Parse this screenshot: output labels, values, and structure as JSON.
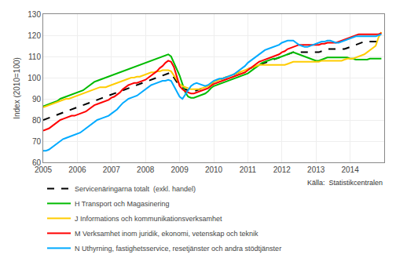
{
  "chart_data": {
    "type": "line",
    "ylabel": "Index (2010=100)",
    "annotations": [
      "Källa:  Statistikcentralen"
    ],
    "xlim": [
      2005.0,
      2015.0
    ],
    "ylim": [
      60,
      130
    ],
    "xticks": [
      2005,
      2006,
      2007,
      2008,
      2009,
      2010,
      2011,
      2012,
      2013,
      2014
    ],
    "yticks": [
      60,
      70,
      80,
      90,
      100,
      110,
      120,
      130
    ],
    "grid": true,
    "legend": "bottom",
    "x": [
      2005.0,
      2005.083,
      2005.167,
      2005.25,
      2005.333,
      2005.417,
      2005.5,
      2005.583,
      2005.667,
      2005.75,
      2005.833,
      2005.917,
      2006.0,
      2006.083,
      2006.167,
      2006.25,
      2006.333,
      2006.417,
      2006.5,
      2006.583,
      2006.667,
      2006.75,
      2006.833,
      2006.917,
      2007.0,
      2007.083,
      2007.167,
      2007.25,
      2007.333,
      2007.417,
      2007.5,
      2007.583,
      2007.667,
      2007.75,
      2007.833,
      2007.917,
      2008.0,
      2008.083,
      2008.167,
      2008.25,
      2008.333,
      2008.417,
      2008.5,
      2008.583,
      2008.667,
      2008.75,
      2008.833,
      2008.917,
      2009.0,
      2009.083,
      2009.167,
      2009.25,
      2009.333,
      2009.417,
      2009.5,
      2009.583,
      2009.667,
      2009.75,
      2009.833,
      2009.917,
      2010.0,
      2010.083,
      2010.167,
      2010.25,
      2010.333,
      2010.417,
      2010.5,
      2010.583,
      2010.667,
      2010.75,
      2010.833,
      2010.917,
      2011.0,
      2011.083,
      2011.167,
      2011.25,
      2011.333,
      2011.417,
      2011.5,
      2011.583,
      2011.667,
      2011.75,
      2011.833,
      2011.917,
      2012.0,
      2012.083,
      2012.167,
      2012.25,
      2012.333,
      2012.417,
      2012.5,
      2012.583,
      2012.667,
      2012.75,
      2012.833,
      2012.917,
      2013.0,
      2013.083,
      2013.167,
      2013.25,
      2013.333,
      2013.417,
      2013.5,
      2013.583,
      2013.667,
      2013.75,
      2013.833,
      2013.917,
      2014.0,
      2014.083,
      2014.167,
      2014.25,
      2014.333,
      2014.417,
      2014.5,
      2014.583,
      2014.667,
      2014.75,
      2014.833,
      2014.917
    ],
    "series": [
      {
        "name": "Servicenäringarna totalt  (exkl. handel)",
        "color": "#000000",
        "line_style": "dashed",
        "values": [
          80.0,
          80.5,
          81.0,
          81.5,
          82.0,
          82.5,
          83.0,
          83.5,
          84.0,
          84.5,
          85.0,
          85.5,
          86.0,
          86.5,
          87.0,
          87.5,
          88.0,
          88.5,
          89.0,
          89.5,
          90.0,
          90.5,
          91.0,
          91.5,
          92.0,
          92.5,
          93.0,
          93.5,
          94.0,
          94.5,
          95.0,
          95.5,
          96.0,
          96.5,
          97.0,
          97.5,
          98.0,
          98.5,
          99.0,
          99.5,
          100.0,
          100.5,
          101.0,
          101.5,
          102.0,
          102.5,
          100.0,
          98.0,
          96.0,
          95.0,
          94.5,
          94.0,
          93.5,
          93.5,
          94.0,
          94.5,
          95.0,
          95.5,
          96.0,
          97.0,
          98.0,
          98.5,
          99.0,
          99.5,
          100.0,
          100.5,
          101.0,
          101.5,
          102.0,
          102.5,
          103.0,
          103.5,
          104.0,
          104.5,
          105.0,
          105.5,
          106.0,
          106.5,
          107.0,
          107.5,
          108.0,
          108.5,
          109.0,
          109.5,
          110.0,
          110.5,
          111.0,
          111.5,
          112.0,
          112.0,
          112.0,
          112.0,
          112.0,
          112.0,
          112.0,
          112.0,
          112.0,
          112.0,
          112.5,
          113.0,
          113.5,
          113.5,
          113.5,
          113.5,
          113.5,
          113.5,
          113.5,
          114.0,
          114.5,
          115.0,
          115.5,
          116.0,
          116.5,
          117.0,
          117.0,
          117.0,
          117.0,
          117.0,
          117.0,
          117.5
        ]
      },
      {
        "name": "H Transport och Magasinering",
        "color": "#00bb00",
        "line_style": "solid",
        "values": [
          86.5,
          87.0,
          87.5,
          88.0,
          88.5,
          89.0,
          90.0,
          90.5,
          91.0,
          91.5,
          92.0,
          92.5,
          93.0,
          93.5,
          94.0,
          95.0,
          96.0,
          97.0,
          98.0,
          98.5,
          99.0,
          99.5,
          100.0,
          100.5,
          101.0,
          101.5,
          102.0,
          102.5,
          103.0,
          103.5,
          104.0,
          104.5,
          105.0,
          105.5,
          106.0,
          106.5,
          107.0,
          107.5,
          108.0,
          108.5,
          109.0,
          109.5,
          110.0,
          110.5,
          111.0,
          110.0,
          107.0,
          104.0,
          101.0,
          97.0,
          93.0,
          91.0,
          90.5,
          90.5,
          91.0,
          91.5,
          92.0,
          92.5,
          93.5,
          95.0,
          96.0,
          96.5,
          97.0,
          97.5,
          98.0,
          98.5,
          99.0,
          99.5,
          100.0,
          100.5,
          101.0,
          101.5,
          102.0,
          103.0,
          104.0,
          105.0,
          106.0,
          107.0,
          107.5,
          108.0,
          108.5,
          109.0,
          109.0,
          109.5,
          110.0,
          110.5,
          111.0,
          111.5,
          112.0,
          111.5,
          111.0,
          110.5,
          110.0,
          109.5,
          109.0,
          108.5,
          108.0,
          108.0,
          108.5,
          109.0,
          109.5,
          109.5,
          109.5,
          109.5,
          109.5,
          109.5,
          109.5,
          109.5,
          109.0,
          109.0,
          108.5,
          108.5,
          108.5,
          108.5,
          108.5,
          109.0,
          109.0,
          109.0,
          109.0,
          109.0
        ]
      },
      {
        "name": "J Informations och kommunikationsverksamhet",
        "color": "#ffcc00",
        "line_style": "solid",
        "values": [
          86.0,
          86.5,
          87.0,
          87.5,
          88.0,
          88.5,
          89.0,
          89.5,
          90.0,
          90.0,
          90.5,
          91.0,
          91.5,
          92.0,
          92.5,
          93.0,
          93.5,
          94.0,
          94.5,
          95.0,
          95.5,
          95.5,
          95.5,
          96.0,
          96.5,
          97.0,
          97.5,
          98.0,
          98.5,
          99.0,
          99.5,
          100.0,
          100.0,
          100.5,
          100.5,
          101.0,
          101.5,
          102.0,
          102.5,
          102.5,
          103.0,
          103.0,
          103.5,
          103.5,
          103.5,
          103.0,
          101.0,
          99.0,
          97.0,
          96.0,
          95.5,
          95.0,
          94.5,
          94.5,
          94.5,
          94.5,
          95.0,
          95.5,
          96.0,
          97.0,
          98.0,
          98.5,
          99.0,
          99.5,
          100.0,
          100.5,
          101.0,
          101.5,
          102.0,
          102.5,
          103.0,
          103.5,
          104.0,
          104.5,
          105.0,
          105.5,
          106.0,
          106.0,
          106.0,
          106.0,
          106.0,
          106.0,
          106.0,
          106.0,
          106.0,
          106.0,
          106.5,
          107.0,
          107.5,
          107.5,
          107.5,
          107.5,
          107.5,
          107.5,
          107.5,
          107.5,
          107.5,
          107.5,
          108.0,
          108.0,
          108.0,
          108.0,
          108.0,
          108.0,
          108.0,
          108.0,
          108.5,
          109.0,
          109.0,
          109.0,
          109.5,
          110.0,
          110.5,
          111.0,
          112.0,
          113.0,
          114.0,
          115.0,
          119.0,
          121.5
        ]
      },
      {
        "name": "M Verksamhet inom juridik, ekonomi, vetenskap och teknik",
        "color": "#ff0000",
        "line_style": "solid",
        "values": [
          75.0,
          75.5,
          76.0,
          77.0,
          78.0,
          79.0,
          80.0,
          80.5,
          81.0,
          81.5,
          82.0,
          82.0,
          82.5,
          83.0,
          83.5,
          84.0,
          85.0,
          86.0,
          87.0,
          87.5,
          88.0,
          88.5,
          89.0,
          89.5,
          90.5,
          91.0,
          92.0,
          93.0,
          94.5,
          95.5,
          96.5,
          97.0,
          97.5,
          97.5,
          98.0,
          98.5,
          99.0,
          100.0,
          101.0,
          102.0,
          103.0,
          104.5,
          105.5,
          107.0,
          108.0,
          107.5,
          105.0,
          100.5,
          96.0,
          94.5,
          93.5,
          93.0,
          92.5,
          92.5,
          93.0,
          93.5,
          94.0,
          94.5,
          95.0,
          96.0,
          97.0,
          97.5,
          98.0,
          98.5,
          99.0,
          99.5,
          100.0,
          100.5,
          101.0,
          101.5,
          102.0,
          102.5,
          103.5,
          104.5,
          105.5,
          106.5,
          107.5,
          108.0,
          108.5,
          109.0,
          109.5,
          110.0,
          110.5,
          111.0,
          112.0,
          112.5,
          113.5,
          114.0,
          114.5,
          115.0,
          115.5,
          115.5,
          115.5,
          115.5,
          115.5,
          115.5,
          115.5,
          115.5,
          116.0,
          116.0,
          116.5,
          116.5,
          116.5,
          116.5,
          117.0,
          117.5,
          118.0,
          118.5,
          119.0,
          119.5,
          120.0,
          120.5,
          120.5,
          120.5,
          120.5,
          120.5,
          120.5,
          120.5,
          120.5,
          121.0
        ]
      },
      {
        "name": "N Uthyrning, fastighetsservice, resetjänster och andra stödtjänster",
        "color": "#00aaff",
        "line_style": "solid",
        "values": [
          65.5,
          65.5,
          66.0,
          67.0,
          68.0,
          69.0,
          70.0,
          71.0,
          71.5,
          72.0,
          72.5,
          73.0,
          73.5,
          74.0,
          75.0,
          76.0,
          77.0,
          78.0,
          79.0,
          80.0,
          80.5,
          81.0,
          81.5,
          82.0,
          83.0,
          84.0,
          85.0,
          86.5,
          88.0,
          89.0,
          90.0,
          90.5,
          91.0,
          91.5,
          92.5,
          93.5,
          94.5,
          95.5,
          96.5,
          97.0,
          97.5,
          98.0,
          98.5,
          98.5,
          99.0,
          98.5,
          96.0,
          93.5,
          91.0,
          90.0,
          92.0,
          94.0,
          96.0,
          97.0,
          97.5,
          97.0,
          96.5,
          96.0,
          96.5,
          97.5,
          98.5,
          99.0,
          99.5,
          99.5,
          100.0,
          100.5,
          101.0,
          101.5,
          102.5,
          103.5,
          104.5,
          105.5,
          107.0,
          108.0,
          109.0,
          110.0,
          111.0,
          112.0,
          113.0,
          113.5,
          114.0,
          114.5,
          115.0,
          115.5,
          116.5,
          117.0,
          117.5,
          117.5,
          117.5,
          116.5,
          115.5,
          115.0,
          114.5,
          114.5,
          115.0,
          115.5,
          116.0,
          116.5,
          117.0,
          117.0,
          117.5,
          117.5,
          117.0,
          116.5,
          116.5,
          117.0,
          117.5,
          118.0,
          118.5,
          119.0,
          119.5,
          119.5,
          119.5,
          119.5,
          119.5,
          119.5,
          119.5,
          119.5,
          120.0,
          120.5
        ]
      }
    ]
  }
}
